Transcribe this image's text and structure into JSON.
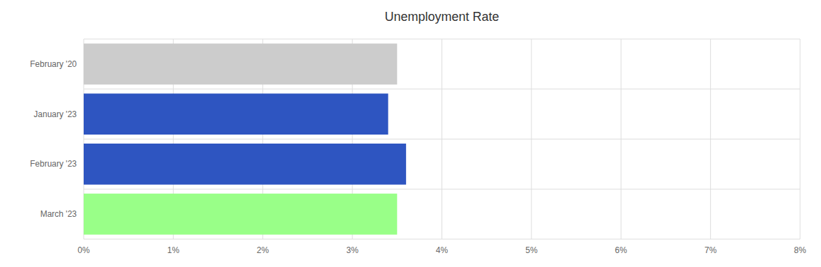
{
  "chart_data": {
    "type": "bar",
    "orientation": "horizontal",
    "title": "Unemployment Rate",
    "categories": [
      "February '20",
      "January '23",
      "February '23",
      "March '23"
    ],
    "values": [
      3.5,
      3.4,
      3.6,
      3.5
    ],
    "colors": [
      "#cccccc",
      "#2e55c1",
      "#2e55c1",
      "#99ff88"
    ],
    "xlim": [
      0,
      8
    ],
    "xticks": [
      {
        "value": 0,
        "label": "0%"
      },
      {
        "value": 1,
        "label": "1%"
      },
      {
        "value": 2,
        "label": "2%"
      },
      {
        "value": 3,
        "label": "3%"
      },
      {
        "value": 4,
        "label": "4%"
      },
      {
        "value": 5,
        "label": "5%"
      },
      {
        "value": 6,
        "label": "6%"
      },
      {
        "value": 7,
        "label": "7%"
      },
      {
        "value": 8,
        "label": "8%"
      }
    ],
    "grid": true
  }
}
